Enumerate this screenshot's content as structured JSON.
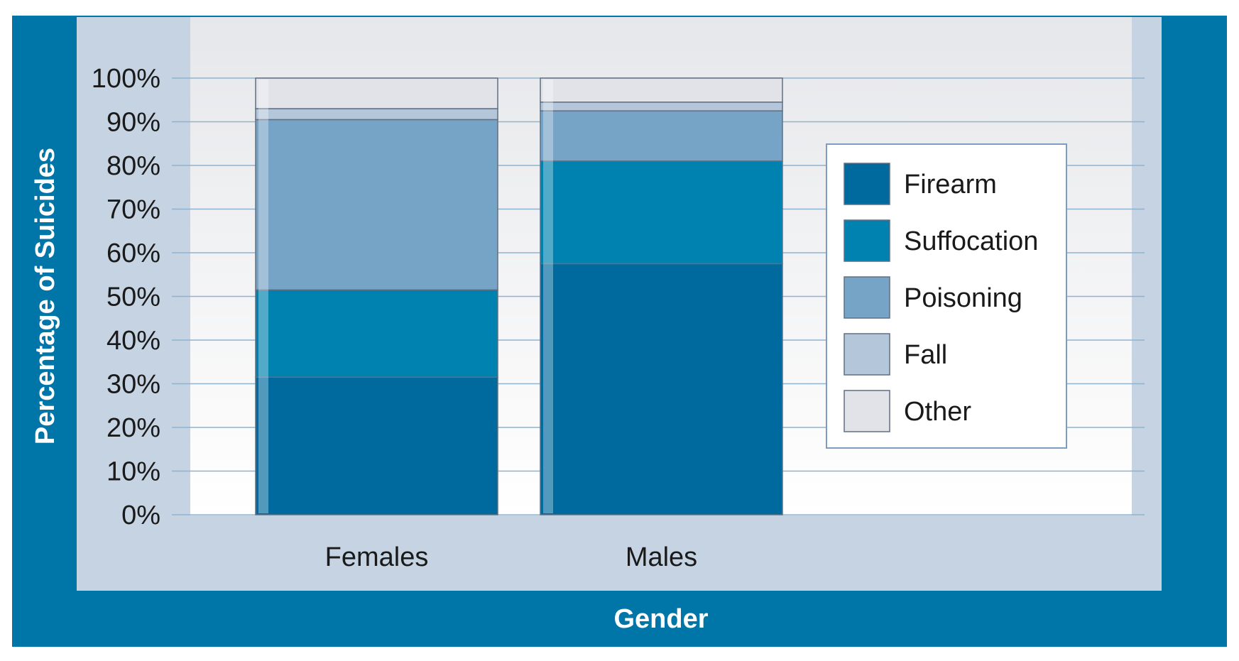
{
  "chart_data": {
    "type": "bar",
    "stacked": true,
    "title": "",
    "xlabel": "Gender",
    "ylabel": "Percentage of Suicides",
    "ylim": [
      0,
      100
    ],
    "yticks": [
      "0%",
      "10%",
      "20%",
      "30%",
      "40%",
      "50%",
      "60%",
      "70%",
      "80%",
      "90%",
      "100%"
    ],
    "categories": [
      "Females",
      "Males"
    ],
    "series": [
      {
        "name": "Firearm",
        "values": [
          31.5,
          57.5
        ],
        "color": "#006a9e"
      },
      {
        "name": "Suffocation",
        "values": [
          20,
          23.5
        ],
        "color": "#0082b0"
      },
      {
        "name": "Poisoning",
        "values": [
          39,
          11.5
        ],
        "color": "#76a4c7"
      },
      {
        "name": "Fall",
        "values": [
          2.5,
          2
        ],
        "color": "#b4c7da"
      },
      {
        "name": "Other",
        "values": [
          7,
          5.5
        ],
        "color": "#e2e3e8"
      }
    ],
    "legend": "right",
    "grid": true
  },
  "colors": {
    "frame": "#0075a8",
    "panel": "#c5d3e2",
    "plot_bg_top": "#e6e7ea",
    "plot_bg_bottom": "#ffffff",
    "grid": "#8fb3cf",
    "bar_outline": "#5f6f84",
    "axis_text": "#1a1a1a",
    "label_text": "#ffffff"
  }
}
